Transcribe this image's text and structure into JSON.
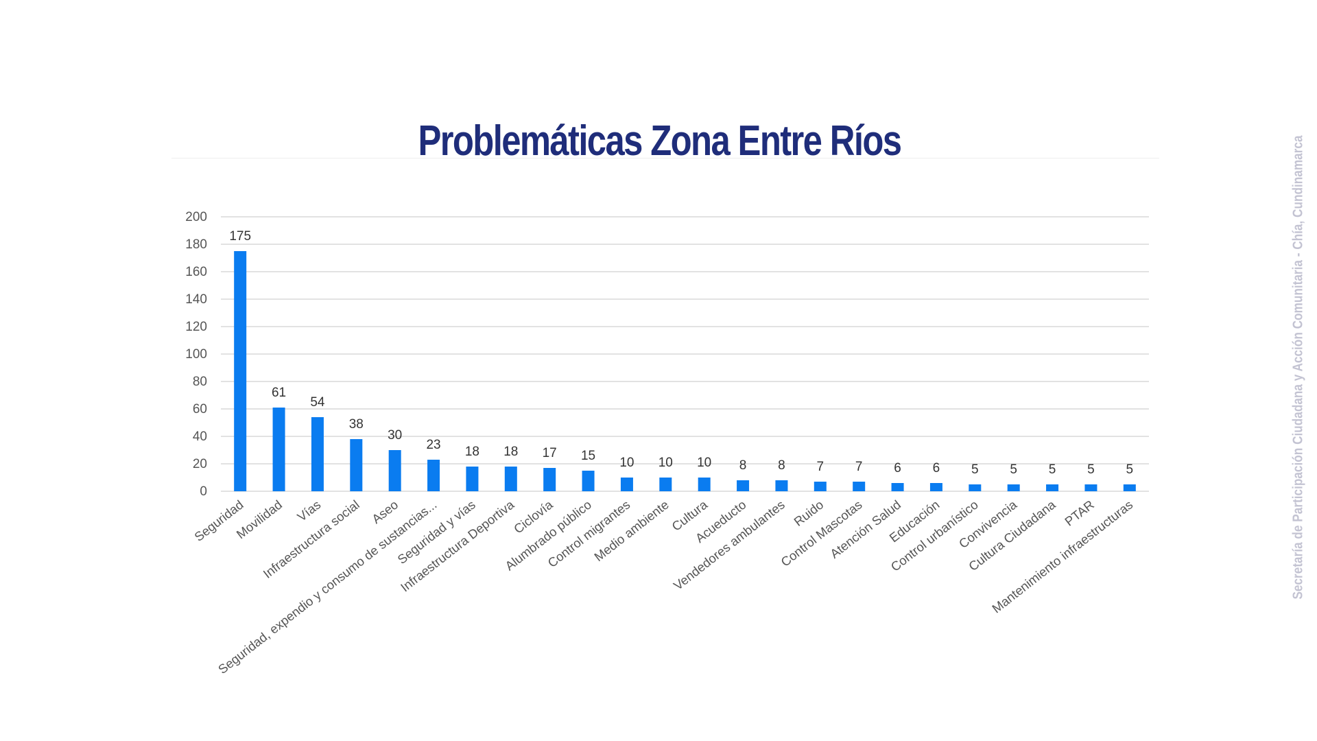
{
  "colors": {
    "bar": "#0a7cf0",
    "title": "#1f2d7a",
    "grid": "#d9d9d9",
    "axis_text": "#555555",
    "label_text": "#333333",
    "side_caption": "#c3c3d2"
  },
  "side_caption": "Secretaría de Participación Ciudadana y Acción Comunitaria - Chía, Cundinamarca",
  "chart_data": {
    "type": "bar",
    "title": "Problemáticas Zona Entre Ríos",
    "xlabel": "",
    "ylabel": "",
    "ylim": [
      0,
      200
    ],
    "yticks": [
      0,
      20,
      40,
      60,
      80,
      100,
      120,
      140,
      160,
      180,
      200
    ],
    "grid": true,
    "legend": "none",
    "data_labels": true,
    "categories": [
      "Seguridad",
      "Movilidad",
      "Vías",
      "Infraestructura social",
      "Aseo",
      "Seguridad, expendio y consumo de sustancias...",
      "Seguridad y vías",
      "Infraestructura Deportiva",
      "Ciclovía",
      "Alumbrado público",
      "Control migrantes",
      "Medio ambiente",
      "Cultura",
      "Acueducto",
      "Vendedores ambulantes",
      "Ruido",
      "Control Mascotas",
      "Atención Salud",
      "Educación",
      "Control urbanístico",
      "Convivencia",
      "Cultura Ciudadana",
      "PTAR",
      "Mantenimiento infraestructuras"
    ],
    "values": [
      175,
      61,
      54,
      38,
      30,
      23,
      18,
      18,
      17,
      15,
      10,
      10,
      10,
      8,
      8,
      7,
      7,
      6,
      6,
      5,
      5,
      5,
      5,
      5
    ]
  }
}
